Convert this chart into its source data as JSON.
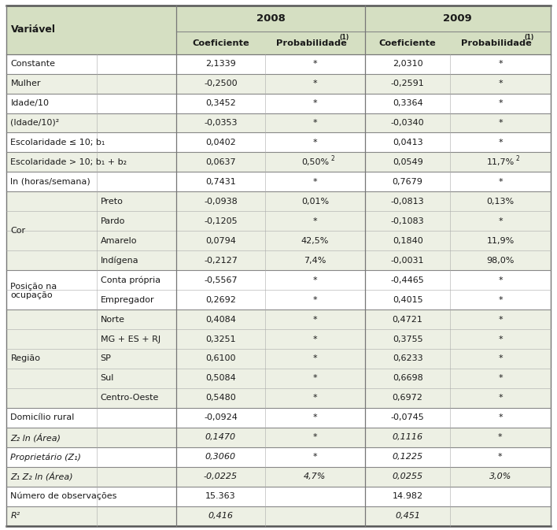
{
  "header_bg": "#d5dfc2",
  "shaded_bg": "#edf0e4",
  "white_bg": "#ffffff",
  "rows": [
    {
      "group": "Constante",
      "sub": "",
      "c08": "2,1339",
      "p08": "*",
      "c09": "2,0310",
      "p09": "*",
      "shade": false,
      "group_start": true,
      "group_end": true,
      "group_rows": 1
    },
    {
      "group": "Mulher",
      "sub": "",
      "c08": "-0,2500",
      "p08": "*",
      "c09": "-0,2591",
      "p09": "*",
      "shade": true,
      "group_start": true,
      "group_end": true,
      "group_rows": 1
    },
    {
      "group": "Idade/10",
      "sub": "",
      "c08": "0,3452",
      "p08": "*",
      "c09": "0,3364",
      "p09": "*",
      "shade": false,
      "group_start": true,
      "group_end": true,
      "group_rows": 1
    },
    {
      "group": "(Idade/10)²",
      "sub": "",
      "c08": "-0,0353",
      "p08": "*",
      "c09": "-0,0340",
      "p09": "*",
      "shade": true,
      "group_start": true,
      "group_end": true,
      "group_rows": 1
    },
    {
      "group": "Escolaridade ≤ 10; b₁",
      "sub": "",
      "c08": "0,0402",
      "p08": "*",
      "c09": "0,0413",
      "p09": "*",
      "shade": false,
      "group_start": true,
      "group_end": true,
      "group_rows": 1
    },
    {
      "group": "Escolaridade > 10; b₁ + b₂",
      "sub": "",
      "c08": "0,0637",
      "p08": "0,50%²",
      "c09": "0,0549",
      "p09": "11,7%²",
      "shade": true,
      "group_start": true,
      "group_end": true,
      "group_rows": 1
    },
    {
      "group": "ln (horas/semana)",
      "sub": "",
      "c08": "0,7431",
      "p08": "*",
      "c09": "0,7679",
      "p09": "*",
      "shade": false,
      "group_start": true,
      "group_end": true,
      "group_rows": 1
    },
    {
      "group": "Cor",
      "sub": "Preto",
      "c08": "-0,0938",
      "p08": "0,01%",
      "c09": "-0,0813",
      "p09": "0,13%",
      "shade": true,
      "group_start": true,
      "group_end": false,
      "group_rows": 4
    },
    {
      "group": "Cor",
      "sub": "Pardo",
      "c08": "-0,1205",
      "p08": "*",
      "c09": "-0,1083",
      "p09": "*",
      "shade": true,
      "group_start": false,
      "group_end": false,
      "group_rows": 4
    },
    {
      "group": "Cor",
      "sub": "Amarelo",
      "c08": "0,0794",
      "p08": "42,5%",
      "c09": "0,1840",
      "p09": "11,9%",
      "shade": true,
      "group_start": false,
      "group_end": false,
      "group_rows": 4
    },
    {
      "group": "Cor",
      "sub": "Indígena",
      "c08": "-0,2127",
      "p08": "7,4%",
      "c09": "-0,0031",
      "p09": "98,0%",
      "shade": true,
      "group_start": false,
      "group_end": true,
      "group_rows": 4
    },
    {
      "group": "Posição na\nocupação",
      "sub": "Conta própria",
      "c08": "-0,5567",
      "p08": "*",
      "c09": "-0,4465",
      "p09": "*",
      "shade": false,
      "group_start": true,
      "group_end": false,
      "group_rows": 2
    },
    {
      "group": "Posição na\nocupação",
      "sub": "Empregador",
      "c08": "0,2692",
      "p08": "*",
      "c09": "0,4015",
      "p09": "*",
      "shade": false,
      "group_start": false,
      "group_end": true,
      "group_rows": 2
    },
    {
      "group": "Região",
      "sub": "Norte",
      "c08": "0,4084",
      "p08": "*",
      "c09": "0,4721",
      "p09": "*",
      "shade": true,
      "group_start": true,
      "group_end": false,
      "group_rows": 5
    },
    {
      "group": "Região",
      "sub": "MG + ES + RJ",
      "c08": "0,3251",
      "p08": "*",
      "c09": "0,3755",
      "p09": "*",
      "shade": true,
      "group_start": false,
      "group_end": false,
      "group_rows": 5
    },
    {
      "group": "Região",
      "sub": "SP",
      "c08": "0,6100",
      "p08": "*",
      "c09": "0,6233",
      "p09": "*",
      "shade": true,
      "group_start": false,
      "group_end": false,
      "group_rows": 5
    },
    {
      "group": "Região",
      "sub": "Sul",
      "c08": "0,5084",
      "p08": "*",
      "c09": "0,6698",
      "p09": "*",
      "shade": true,
      "group_start": false,
      "group_end": false,
      "group_rows": 5
    },
    {
      "group": "Região",
      "sub": "Centro-Oeste",
      "c08": "0,5480",
      "p08": "*",
      "c09": "0,6972",
      "p09": "*",
      "shade": true,
      "group_start": false,
      "group_end": true,
      "group_rows": 5
    },
    {
      "group": "Domicílio rural",
      "sub": "",
      "c08": "-0,0924",
      "p08": "*",
      "c09": "-0,0745",
      "p09": "*",
      "shade": false,
      "group_start": true,
      "group_end": true,
      "group_rows": 1
    },
    {
      "group": "Z₂ ln (Área)",
      "sub": "",
      "c08": "0,1470",
      "p08": "*",
      "c09": "0,1116",
      "p09": "*",
      "shade": true,
      "group_start": true,
      "group_end": true,
      "group_rows": 1
    },
    {
      "group": "Proprietário (Z₁)",
      "sub": "",
      "c08": "0,3060",
      "p08": "*",
      "c09": "0,1225",
      "p09": "*",
      "shade": false,
      "group_start": true,
      "group_end": true,
      "group_rows": 1
    },
    {
      "group": "Z₁ Z₂ ln (Área)",
      "sub": "",
      "c08": "-0,0225",
      "p08": "4,7%",
      "c09": "0,0255",
      "p09": "3,0%",
      "shade": true,
      "group_start": true,
      "group_end": true,
      "group_rows": 1
    },
    {
      "group": "Número de observações",
      "sub": "",
      "c08": "15.363",
      "p08": "",
      "c09": "14.982",
      "p09": "",
      "shade": false,
      "group_start": true,
      "group_end": true,
      "group_rows": 1
    },
    {
      "group": "R²",
      "sub": "",
      "c08": "0,416",
      "p08": "",
      "c09": "0,451",
      "p09": "",
      "shade": true,
      "group_start": true,
      "group_end": true,
      "group_rows": 1
    }
  ],
  "italic_rows": [
    "Z₂ ln (Área)",
    "Proprietário (Z₁)",
    "Z₁ Z₂ ln (Área)",
    "R²"
  ]
}
